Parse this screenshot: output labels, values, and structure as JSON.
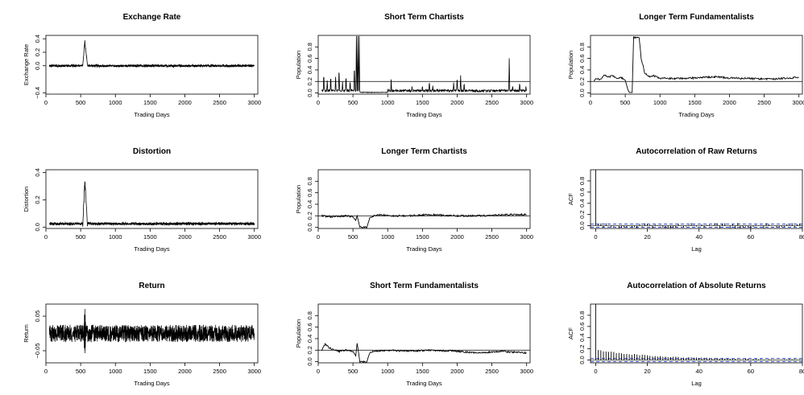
{
  "figure": {
    "panels": 9,
    "layout": "3x3"
  },
  "chart_data": [
    {
      "id": "exchange-rate",
      "type": "line",
      "title": "Exchange Rate",
      "xlabel": "Trading Days",
      "ylabel": "Exchange Rate",
      "xlim": [
        0,
        3050
      ],
      "ylim": [
        -0.42,
        0.45
      ],
      "xticks": [
        0,
        500,
        1000,
        1500,
        2000,
        2500,
        3000
      ],
      "yticks": [
        -0.4,
        0.0,
        0.2,
        0.4
      ],
      "ytick_labels": [
        "−0.4",
        "0.0",
        "0.2",
        "0.4"
      ],
      "x_start": 50,
      "x_end": 3000,
      "baseline": 0.0,
      "noise": 0.018,
      "events": [
        {
          "start": 530,
          "peak_at": 560,
          "end": 600,
          "peak": 0.38
        }
      ]
    },
    {
      "id": "short-term-chartists",
      "type": "line",
      "title": "Short Term Chartists",
      "xlabel": "Trading Days",
      "ylabel": "Population",
      "xlim": [
        0,
        3050
      ],
      "ylim": [
        -0.02,
        1.0
      ],
      "xticks": [
        0,
        500,
        1000,
        1500,
        2000,
        2500,
        3000
      ],
      "yticks": [
        0.0,
        0.2,
        0.4,
        0.6,
        0.8
      ],
      "ytick_labels": [
        "0.0",
        "0.2",
        "0.4",
        "0.6",
        "0.8"
      ],
      "hline": 0.2,
      "spikes": [
        [
          80,
          0.35
        ],
        [
          130,
          0.2
        ],
        [
          180,
          0.3
        ],
        [
          250,
          0.27
        ],
        [
          300,
          0.45
        ],
        [
          350,
          0.18
        ],
        [
          400,
          0.3
        ],
        [
          460,
          0.22
        ],
        [
          520,
          0.5
        ],
        [
          550,
          0.98
        ],
        [
          570,
          0.98
        ],
        [
          590,
          0.97
        ],
        [
          1050,
          0.22
        ],
        [
          1350,
          0.1
        ],
        [
          1500,
          0.12
        ],
        [
          1600,
          0.2
        ],
        [
          1650,
          0.12
        ],
        [
          1950,
          0.18
        ],
        [
          2000,
          0.28
        ],
        [
          2050,
          0.3
        ],
        [
          2100,
          0.18
        ],
        [
          2750,
          0.6
        ],
        [
          2800,
          0.12
        ],
        [
          2900,
          0.18
        ],
        [
          2990,
          0.1
        ]
      ]
    },
    {
      "id": "longer-term-fundamentalists",
      "type": "line",
      "title": "Longer Term Fundamentalists",
      "xlabel": "Trading Days",
      "ylabel": "Population",
      "xlim": [
        0,
        3050
      ],
      "ylim": [
        -0.02,
        1.0
      ],
      "xticks": [
        0,
        500,
        1000,
        1500,
        2000,
        2500,
        3000
      ],
      "yticks": [
        0.0,
        0.2,
        0.4,
        0.6,
        0.8
      ],
      "ytick_labels": [
        "0.0",
        "0.2",
        "0.4",
        "0.6",
        "0.8"
      ],
      "hline": 0.2,
      "points": [
        [
          50,
          0.22
        ],
        [
          100,
          0.25
        ],
        [
          150,
          0.23
        ],
        [
          200,
          0.32
        ],
        [
          260,
          0.28
        ],
        [
          320,
          0.3
        ],
        [
          380,
          0.25
        ],
        [
          440,
          0.27
        ],
        [
          500,
          0.22
        ],
        [
          540,
          0.05
        ],
        [
          560,
          0.01
        ],
        [
          600,
          0.01
        ],
        [
          620,
          0.96
        ],
        [
          700,
          0.96
        ],
        [
          730,
          0.6
        ],
        [
          780,
          0.35
        ],
        [
          850,
          0.28
        ],
        [
          900,
          0.3
        ],
        [
          1000,
          0.26
        ],
        [
          1200,
          0.25
        ],
        [
          1500,
          0.26
        ],
        [
          1800,
          0.28
        ],
        [
          2000,
          0.26
        ],
        [
          2300,
          0.25
        ],
        [
          2600,
          0.24
        ],
        [
          3000,
          0.27
        ]
      ]
    },
    {
      "id": "distortion",
      "type": "line",
      "title": "Distortion",
      "xlabel": "Trading Days",
      "ylabel": "Distortion",
      "xlim": [
        0,
        3050
      ],
      "ylim": [
        -0.01,
        0.42
      ],
      "xticks": [
        0,
        500,
        1000,
        1500,
        2000,
        2500,
        3000
      ],
      "yticks": [
        0.0,
        0.2,
        0.4
      ],
      "ytick_labels": [
        "0.0",
        "0.2",
        "0.4"
      ],
      "x_start": 50,
      "x_end": 3000,
      "baseline": 0.015,
      "noise": 0.022,
      "events": [
        {
          "start": 530,
          "peak_at": 560,
          "end": 600,
          "peak": 0.37
        }
      ]
    },
    {
      "id": "longer-term-chartists",
      "type": "line",
      "title": "Longer Term Chartists",
      "xlabel": "Trading Days",
      "ylabel": "Population",
      "xlim": [
        0,
        3050
      ],
      "ylim": [
        -0.02,
        1.0
      ],
      "xticks": [
        0,
        500,
        1000,
        1500,
        2000,
        2500,
        3000
      ],
      "yticks": [
        0.0,
        0.2,
        0.4,
        0.6,
        0.8
      ],
      "ytick_labels": [
        "0.0",
        "0.2",
        "0.4",
        "0.6",
        "0.8"
      ],
      "hline": 0.2,
      "points": [
        [
          50,
          0.2
        ],
        [
          200,
          0.18
        ],
        [
          400,
          0.2
        ],
        [
          500,
          0.18
        ],
        [
          540,
          0.12
        ],
        [
          560,
          0.2
        ],
        [
          600,
          0.0
        ],
        [
          650,
          0.0
        ],
        [
          700,
          0.0
        ],
        [
          740,
          0.15
        ],
        [
          800,
          0.2
        ],
        [
          900,
          0.22
        ],
        [
          1000,
          0.2
        ],
        [
          1300,
          0.2
        ],
        [
          1600,
          0.22
        ],
        [
          2000,
          0.2
        ],
        [
          2300,
          0.2
        ],
        [
          2500,
          0.21
        ],
        [
          2700,
          0.22
        ],
        [
          3000,
          0.22
        ]
      ]
    },
    {
      "id": "autocorr-raw",
      "type": "bar",
      "title": "Autocorrelation of Raw Returns",
      "xlabel": "Lag",
      "ylabel": "ACF",
      "xlim": [
        -2,
        80
      ],
      "ylim": [
        -0.05,
        1.0
      ],
      "xticks": [
        0,
        20,
        40,
        60,
        80
      ],
      "yticks": [
        0.0,
        0.2,
        0.4,
        0.6,
        0.8
      ],
      "ytick_labels": [
        "0.0",
        "0.2",
        "0.4",
        "0.6",
        "0.8"
      ],
      "lag0": 1.0,
      "amplitude": 0.05,
      "decay": 0,
      "conf": 0.03
    },
    {
      "id": "return",
      "type": "line",
      "title": "Return",
      "xlabel": "Trading Days",
      "ylabel": "Return",
      "xlim": [
        0,
        3050
      ],
      "ylim": [
        -0.085,
        0.085
      ],
      "xticks": [
        0,
        500,
        1000,
        1500,
        2000,
        2500,
        3000
      ],
      "yticks": [
        -0.05,
        0.05
      ],
      "ytick_labels": [
        "−0.05",
        "0.05"
      ],
      "x_start": 50,
      "x_end": 3000,
      "baseline": 0.0,
      "noise": 0.025,
      "events": [
        {
          "start": 540,
          "peak_at": 560,
          "end": 580,
          "peak": 0.08
        }
      ]
    },
    {
      "id": "short-term-fundamentalists",
      "type": "line",
      "title": "Short Term Fundamentalists",
      "xlabel": "Trading Days",
      "ylabel": "Population",
      "xlim": [
        0,
        3050
      ],
      "ylim": [
        -0.02,
        1.0
      ],
      "xticks": [
        0,
        500,
        1000,
        1500,
        2000,
        2500,
        3000
      ],
      "yticks": [
        0.0,
        0.2,
        0.4,
        0.6,
        0.8
      ],
      "ytick_labels": [
        "0.0",
        "0.2",
        "0.4",
        "0.6",
        "0.8"
      ],
      "hline": 0.2,
      "points": [
        [
          50,
          0.2
        ],
        [
          100,
          0.3
        ],
        [
          150,
          0.25
        ],
        [
          200,
          0.22
        ],
        [
          300,
          0.18
        ],
        [
          400,
          0.2
        ],
        [
          500,
          0.18
        ],
        [
          540,
          0.1
        ],
        [
          560,
          0.32
        ],
        [
          600,
          0.0
        ],
        [
          650,
          0.0
        ],
        [
          700,
          0.0
        ],
        [
          740,
          0.15
        ],
        [
          800,
          0.18
        ],
        [
          1000,
          0.2
        ],
        [
          1300,
          0.18
        ],
        [
          1600,
          0.2
        ],
        [
          2000,
          0.18
        ],
        [
          2300,
          0.15
        ],
        [
          2600,
          0.18
        ],
        [
          3000,
          0.15
        ]
      ]
    },
    {
      "id": "autocorr-abs",
      "type": "bar",
      "title": "Autocorrelation of Absolute Returns",
      "xlabel": "Lag",
      "ylabel": "ACF",
      "xlim": [
        -2,
        80
      ],
      "ylim": [
        -0.05,
        1.0
      ],
      "xticks": [
        0,
        20,
        40,
        60,
        80
      ],
      "yticks": [
        0.0,
        0.2,
        0.4,
        0.6,
        0.8
      ],
      "ytick_labels": [
        "0.0",
        "0.2",
        "0.4",
        "0.6",
        "0.8"
      ],
      "lag0": 1.0,
      "amplitude": 0.18,
      "decay": 0.04,
      "conf": 0.03
    }
  ]
}
